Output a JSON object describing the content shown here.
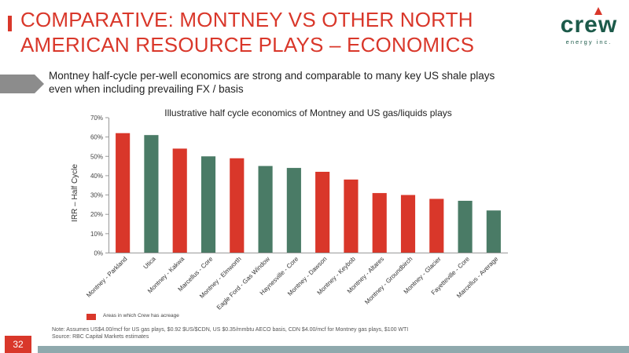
{
  "title": "COMPARATIVE: MONTNEY VS OTHER NORTH AMERICAN RESOURCE PLAYS – ECONOMICS",
  "logo": {
    "word": "crew",
    "sub": "energy inc."
  },
  "subtitle": "Montney half-cycle per-well economics are strong and comparable to many key US shale plays even when including prevailing FX / basis",
  "legend_label": "Areas in which Crew has acreage",
  "note_line1": "Note: Assumes US$4.00/mcf for US gas plays, $0.92 $US/$CDN, US $0.35/mmbtu AECO basis, CDN $4.00/mcf for Montney gas plays, $100 WTI",
  "note_line2": "Source: RBC Capital Markets estimates",
  "page_number": "32",
  "colors": {
    "red": "#d9372a",
    "green": "#4a7b66",
    "title": "#d9372a"
  },
  "chart_data": {
    "type": "bar",
    "title": "Illustrative half cycle economics of Montney and US gas/liquids plays",
    "ylabel": "IRR – Half Cycle",
    "xlabel": "",
    "ylim": [
      0,
      70
    ],
    "yticks": [
      0,
      10,
      20,
      30,
      40,
      50,
      60,
      70
    ],
    "ytick_labels": [
      "0%",
      "10%",
      "20%",
      "30%",
      "40%",
      "50%",
      "60%",
      "70%"
    ],
    "categories": [
      "Montney - Parkland",
      "Utica",
      "Montney - Kakwa",
      "Marcellus - Core",
      "Montney - Elmworth",
      "Eagle Ford - Gas Window",
      "Haynesville - Core",
      "Montney - Dawson",
      "Montney - Keybob",
      "Montney - Altares",
      "Montney - Groundbirch",
      "Montney - Glacier",
      "Fayetteville - Core",
      "Marcellus - Average"
    ],
    "values": [
      62,
      61,
      54,
      50,
      49,
      45,
      44,
      42,
      38,
      31,
      30,
      28,
      27,
      22
    ],
    "crew_acreage": [
      true,
      false,
      true,
      false,
      true,
      false,
      false,
      true,
      true,
      true,
      true,
      true,
      false,
      false
    ],
    "legend": [
      {
        "label": "Areas in which Crew has acreage",
        "color": "#d9372a"
      }
    ],
    "grid": false
  }
}
